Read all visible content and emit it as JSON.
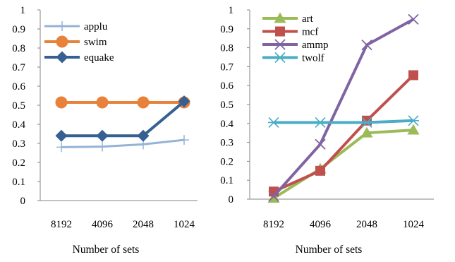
{
  "chart_data": [
    {
      "type": "line",
      "categories": [
        "8192",
        "4096",
        "2048",
        "1024"
      ],
      "xlabel": "Number of sets",
      "ylabel": "",
      "title": "",
      "ylim": [
        0,
        1
      ],
      "yticks": [
        "0",
        "0.1",
        "0.2",
        "0.3",
        "0.4",
        "0.5",
        "0.6",
        "0.7",
        "0.8",
        "0.9",
        "1"
      ],
      "legend_position": "top-left",
      "grid": false,
      "series": [
        {
          "name": "applu",
          "color": "#95b3d7",
          "marker": "plus",
          "values": [
            0.28,
            0.283,
            0.295,
            0.318
          ]
        },
        {
          "name": "swim",
          "color": "#e8823a",
          "marker": "circle",
          "values": [
            0.515,
            0.515,
            0.515,
            0.515
          ]
        },
        {
          "name": "equake",
          "color": "#366092",
          "marker": "diamond",
          "values": [
            0.34,
            0.34,
            0.34,
            0.52
          ]
        }
      ]
    },
    {
      "type": "line",
      "categories": [
        "8192",
        "4096",
        "2048",
        "1024"
      ],
      "xlabel": "Number of sets",
      "ylabel": "",
      "title": "",
      "ylim": [
        0,
        1
      ],
      "yticks": [
        "0",
        "0.1",
        "0.2",
        "0.3",
        "0.4",
        "0.5",
        "0.6",
        "0.7",
        "0.8",
        "0.9",
        "1"
      ],
      "legend_position": "top-left",
      "grid": false,
      "series": [
        {
          "name": "art",
          "color": "#9bbb59",
          "marker": "triangle",
          "values": [
            0.005,
            0.16,
            0.35,
            0.365
          ]
        },
        {
          "name": "mcf",
          "color": "#c0504d",
          "marker": "square",
          "values": [
            0.04,
            0.15,
            0.415,
            0.655
          ]
        },
        {
          "name": "ammp",
          "color": "#8064a2",
          "marker": "x",
          "values": [
            0.015,
            0.29,
            0.815,
            0.95
          ]
        },
        {
          "name": "twolf",
          "color": "#4bacc6",
          "marker": "star",
          "values": [
            0.405,
            0.405,
            0.405,
            0.415
          ]
        }
      ]
    }
  ]
}
